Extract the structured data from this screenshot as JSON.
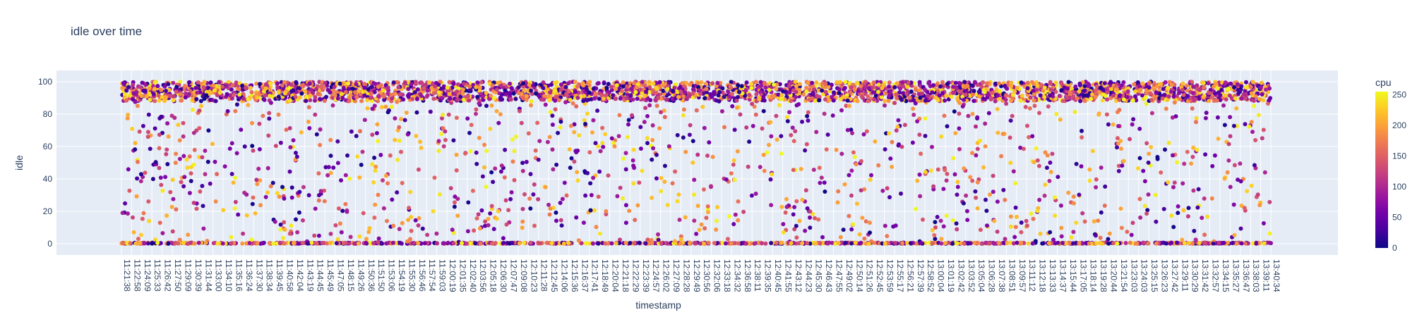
{
  "chart_data": {
    "type": "scatter",
    "title": "idle over time",
    "xlabel": "timestamp",
    "ylabel": "idle",
    "ylim": [
      -7,
      107
    ],
    "y_ticks": [
      0,
      20,
      40,
      60,
      80,
      100
    ],
    "x_tick_labels": [
      "11:21:38",
      "11:22:58",
      "11:24:09",
      "11:25:33",
      "11:26:42",
      "11:27:50",
      "11:29:09",
      "11:30:39",
      "11:31:44",
      "11:33:00",
      "11:34:10",
      "11:35:16",
      "11:36:24",
      "11:37:30",
      "11:38:34",
      "11:39:45",
      "11:40:58",
      "11:42:04",
      "11:43:19",
      "11:44:45",
      "11:45:49",
      "11:47:05",
      "11:48:15",
      "11:49:26",
      "11:50:36",
      "11:51:50",
      "11:53:06",
      "11:54:19",
      "11:55:30",
      "11:56:46",
      "11:57:54",
      "11:59:03",
      "12:00:19",
      "12:01:35",
      "12:02:40",
      "12:03:56",
      "12:05:18",
      "12:06:30",
      "12:07:47",
      "12:09:08",
      "12:10:23",
      "12:11:28",
      "12:12:45",
      "12:14:06",
      "12:15:36",
      "12:16:37",
      "12:17:41",
      "12:18:49",
      "12:20:04",
      "12:21:18",
      "12:22:29",
      "12:23:39",
      "12:24:57",
      "12:26:02",
      "12:27:09",
      "12:28:28",
      "12:29:49",
      "12:30:56",
      "12:32:06",
      "12:33:18",
      "12:34:32",
      "12:36:58",
      "12:38:11",
      "12:39:35",
      "12:40:45",
      "12:41:55",
      "12:43:12",
      "12:44:23",
      "12:45:30",
      "12:46:43",
      "12:47:55",
      "12:49:02",
      "12:50:14",
      "12:51:26",
      "12:52:45",
      "12:53:59",
      "12:55:17",
      "12:56:21",
      "12:57:39",
      "12:58:52",
      "13:00:04",
      "13:01:19",
      "13:02:42",
      "13:03:52",
      "13:05:04",
      "13:06:28",
      "13:07:38",
      "13:08:51",
      "13:09:57",
      "13:11:12",
      "13:12:18",
      "13:13:33",
      "13:14:37",
      "13:15:44",
      "13:17:05",
      "13:18:14",
      "13:19:28",
      "13:20:44",
      "13:21:54",
      "13:23:03",
      "13:24:03",
      "13:25:15",
      "13:26:23",
      "13:27:42",
      "13:29:11",
      "13:30:29",
      "13:31:42",
      "13:32:57",
      "13:34:15",
      "13:35:27",
      "13:36:47",
      "13:38:03",
      "13:39:11",
      "13:40:34"
    ],
    "colorbar": {
      "title": "cpu",
      "range": [
        0,
        255
      ],
      "ticks": [
        0,
        50,
        100,
        150,
        200,
        250
      ]
    },
    "colorscale": [
      "#0d0887",
      "#46039f",
      "#7201a8",
      "#9c179e",
      "#bd3786",
      "#d8576b",
      "#ed7953",
      "#fb9f3a",
      "#fdca26",
      "#f0f921"
    ],
    "grid": true,
    "n_points": 5200,
    "point_distribution": "approximately 55% clustered at idle 88-100, 18% at idle 0, remainder spread uniformly 0-100; cpu values uniform 0-255"
  }
}
